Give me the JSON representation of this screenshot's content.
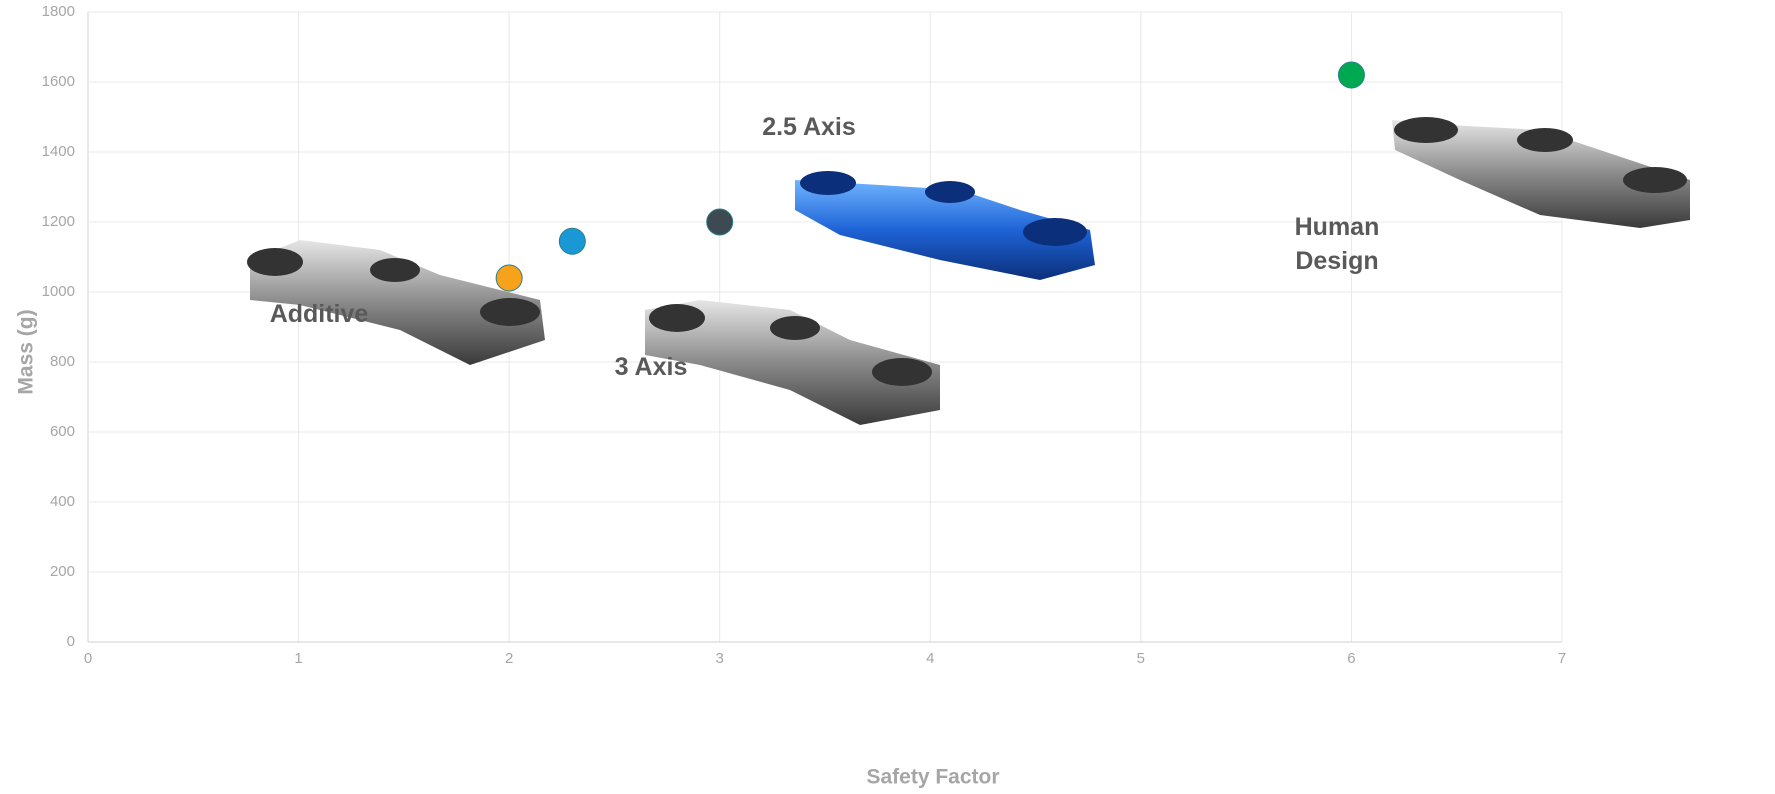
{
  "chart_data": {
    "type": "scatter",
    "x": [
      2,
      2.3,
      3,
      6
    ],
    "values": [
      1040,
      1145,
      1200,
      1620
    ],
    "colors": [
      "#f7a21b",
      "#1a98d5",
      "#3d4a52",
      "#00a84f"
    ],
    "xlim": [
      0,
      7
    ],
    "xticks": [
      0,
      1,
      2,
      3,
      4,
      5,
      6,
      7
    ],
    "ylim": [
      0,
      1800
    ],
    "yticks": [
      0,
      200,
      400,
      600,
      800,
      1000,
      1200,
      1400,
      1600,
      1800
    ],
    "grid": true,
    "xlabel": "Safety Factor",
    "ylabel": "Mass (g)",
    "annotations": [
      "Additive",
      "3 Axis",
      "2.5 Axis",
      "Human Design"
    ]
  }
}
